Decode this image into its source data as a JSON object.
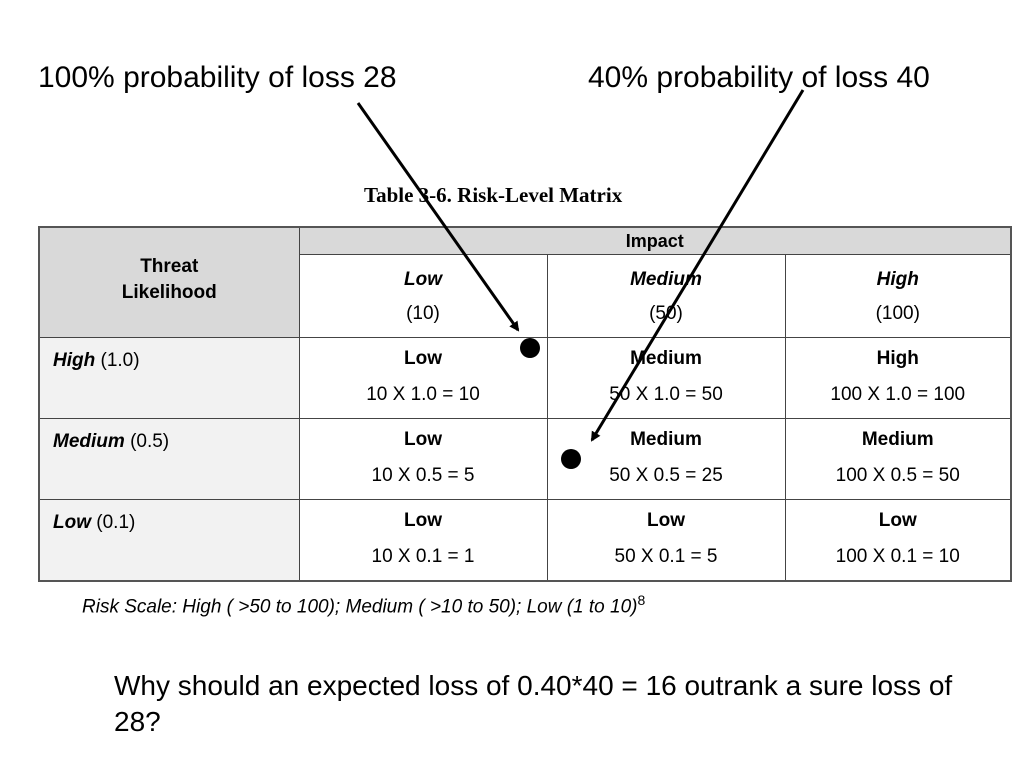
{
  "annotations": {
    "left": "100% probability of loss 28",
    "right": "40% probability of loss 40"
  },
  "table": {
    "caption": "Table 3-6.  Risk-Level Matrix",
    "likelihood_header": "Threat Likelihood",
    "impact_header": "Impact",
    "impact_columns": [
      {
        "name": "Low",
        "value": "(10)"
      },
      {
        "name": "Medium",
        "value": "(50)"
      },
      {
        "name": "High",
        "value": "(100)"
      }
    ],
    "rows": [
      {
        "label": "High",
        "prob": "(1.0)",
        "cells": [
          {
            "level": "Low",
            "calc": "10 X 1.0 = 10"
          },
          {
            "level": "Medium",
            "calc": "50 X 1.0 = 50"
          },
          {
            "level": "High",
            "calc": "100 X 1.0 = 100"
          }
        ]
      },
      {
        "label": "Medium",
        "prob": "(0.5)",
        "cells": [
          {
            "level": "Low",
            "calc": "10 X 0.5 = 5"
          },
          {
            "level": "Medium",
            "calc": "50 X 0.5 = 25"
          },
          {
            "level": "Medium",
            "calc": "100 X 0.5 = 50"
          }
        ]
      },
      {
        "label": "Low",
        "prob": "(0.1)",
        "cells": [
          {
            "level": "Low",
            "calc": "10 X 0.1 = 1"
          },
          {
            "level": "Low",
            "calc": "50 X 0.1 =  5"
          },
          {
            "level": "Low",
            "calc": "100 X 0.1 = 10"
          }
        ]
      }
    ],
    "risk_scale": "Risk Scale:  High ( >50 to 100);  Medium ( >10 to 50);  Low (1 to 10)",
    "risk_scale_footnote": "8"
  },
  "question": "Why should an expected loss of 0.40*40 = 16 outrank a sure loss of 28?"
}
